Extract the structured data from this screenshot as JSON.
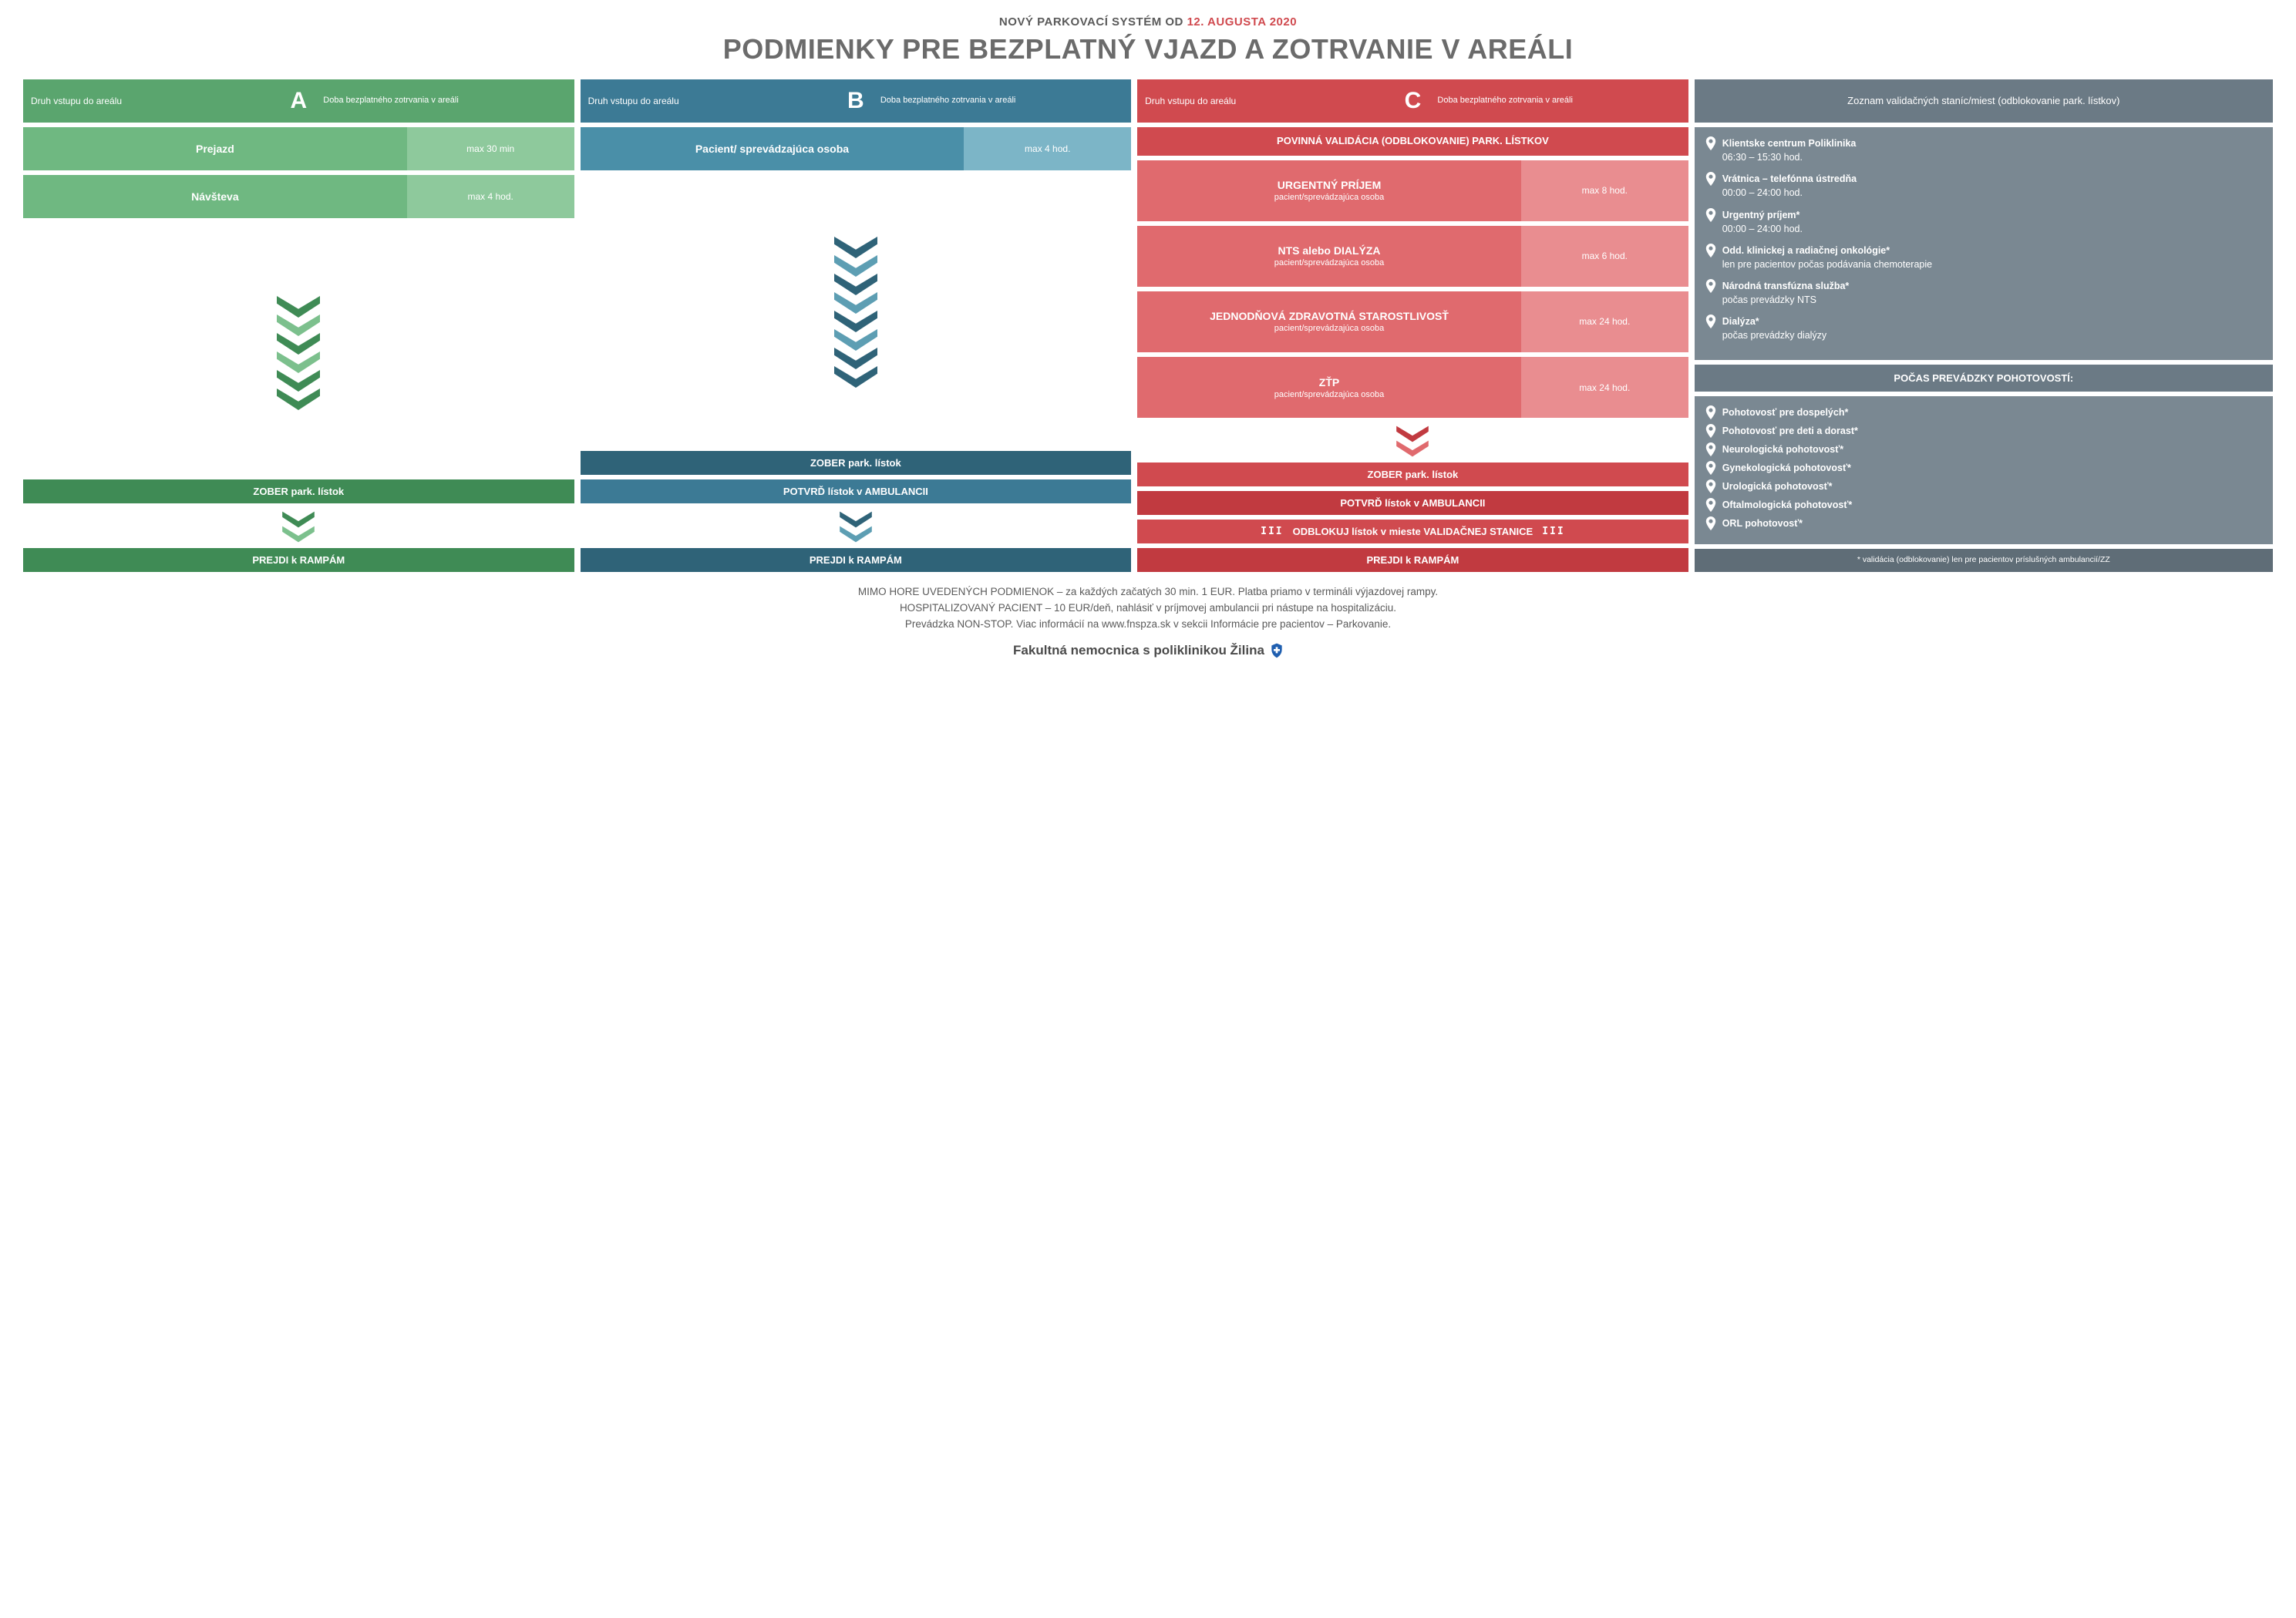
{
  "colors": {
    "date": "#d04a4f",
    "A_head": "#5aa56e",
    "A_med": "#6fb881",
    "A_light": "#8ec99c",
    "A_dark": "#3f8b55",
    "A_alt": "#7cc08d",
    "B_head": "#3c7a95",
    "B_med": "#4a8fa8",
    "B_light": "#7cb5c7",
    "B_dark": "#2f6378",
    "B_alt": "#5d9eb3",
    "C_head": "#d04a4f",
    "C_med": "#e06a6e",
    "C_light": "#e98d90",
    "C_dark": "#c13a40",
    "D_head": "#6b7a85",
    "D_body": "#7a8892",
    "D_sub": "#6b7a85",
    "D_note": "#5f6d77"
  },
  "pretitle_a": "NOVÝ PARKOVACÍ SYSTÉM OD ",
  "pretitle_b": "12. AUGUSTA 2020",
  "title": "PODMIENKY PRE BEZPLATNÝ VJAZD A ZOTRVANIE V AREÁLI",
  "head_left": "Druh vstupu do areálu",
  "head_right": "Doba bezplatného zotrvania v areáli",
  "A": {
    "letter": "A",
    "rows": [
      {
        "l": "Prejazd",
        "r": "max 30 min"
      },
      {
        "l": "Návšteva",
        "r": "max 4 hod."
      }
    ],
    "chevs": [
      "#3f8b55",
      "#7cc08d",
      "#3f8b55",
      "#7cc08d",
      "#3f8b55",
      "#3f8b55"
    ],
    "action1": "ZOBER park. lístok",
    "mini": [
      "#3f8b55",
      "#7cc08d"
    ],
    "action2": "PREJDI k RAMPÁM"
  },
  "B": {
    "letter": "B",
    "rows": [
      {
        "l": "Pacient/ sprevádzajúca osoba",
        "r": "max 4 hod."
      }
    ],
    "chevs": [
      "#2f6378",
      "#5d9eb3",
      "#2f6378",
      "#5d9eb3",
      "#2f6378",
      "#5d9eb3",
      "#2f6378",
      "#2f6378"
    ],
    "action1": "ZOBER park. lístok",
    "action2": "POTVRĎ lístok v AMBULANCII",
    "mini": [
      "#2f6378",
      "#5d9eb3"
    ],
    "action3": "PREJDI k RAMPÁM"
  },
  "C": {
    "letter": "C",
    "banner": "POVINNÁ VALIDÁCIA (ODBLOKOVANIE) PARK. LÍSTKOV",
    "rows": [
      {
        "t": "URGENTNÝ PRÍJEM",
        "s": "pacient/sprevádzajúca osoba",
        "r": "max 8 hod."
      },
      {
        "t": "NTS alebo DIALÝZA",
        "s": "pacient/sprevádzajúca osoba",
        "r": "max 6 hod."
      },
      {
        "t": "JEDNODŇOVÁ ZDRAVOTNÁ STAROSTLIVOSŤ",
        "s": "pacient/sprevádzajúca osoba",
        "r": "max 24 hod."
      },
      {
        "t": "ZŤP",
        "s": "pacient/sprevádzajúca osoba",
        "r": "max 24 hod."
      }
    ],
    "mini1": [
      "#c13a40",
      "#e06a6e"
    ],
    "action1": "ZOBER park. lístok",
    "action2": "POTVRĎ lístok v AMBULANCII",
    "action3": "ODBLOKUJ lístok v mieste VALIDAČNEJ STANICE",
    "action4": "PREJDI k RAMPÁM"
  },
  "D": {
    "head": "Zoznam validačných staníc/miest (odblokovanie park. lístkov)",
    "items1": [
      {
        "b": "Klientske centrum Poliklinika",
        "s": "06:30 – 15:30 hod."
      },
      {
        "b": "Vrátnica – telefónna ústredňa",
        "s": "00:00 – 24:00 hod."
      },
      {
        "b": "Urgentný príjem*",
        "s": "00:00 – 24:00 hod."
      },
      {
        "b": "Odd. klinickej a radiačnej onkológie*",
        "s": "len pre pacientov počas podávania chemoterapie"
      },
      {
        "b": "Národná transfúzna služba*",
        "s": "počas prevádzky NTS"
      },
      {
        "b": "Dialýza*",
        "s": "počas prevádzky dialýzy"
      }
    ],
    "subhead": "POČAS PREVÁDZKY POHOTOVOSTÍ:",
    "items2": [
      "Pohotovosť pre dospelých*",
      "Pohotovosť pre deti a dorast*",
      "Neurologická pohotovosť*",
      "Gynekologická pohotovosť*",
      "Urologická pohotovosť*",
      "Oftalmologická pohotovosť*",
      "ORL pohotovosť*"
    ],
    "note": "* validácia (odblokovanie) len pre pacientov príslušných ambulancií/ZZ"
  },
  "footer": {
    "l1": "MIMO HORE UVEDENÝCH PODMIENOK – za každých začatých 30 min. 1 EUR. Platba priamo v termináli výjazdovej rampy.",
    "l2": "HOSPITALIZOVANÝ PACIENT – 10 EUR/deň, nahlásiť v príjmovej ambulancii pri nástupe na hospitalizáciu.",
    "l3": "Prevádzka NON-STOP. Viac informácií na www.fnspza.sk v sekcii Informácie pre pacientov – Parkovanie.",
    "org": "Fakultná nemocnica s poliklinikou Žilina"
  }
}
